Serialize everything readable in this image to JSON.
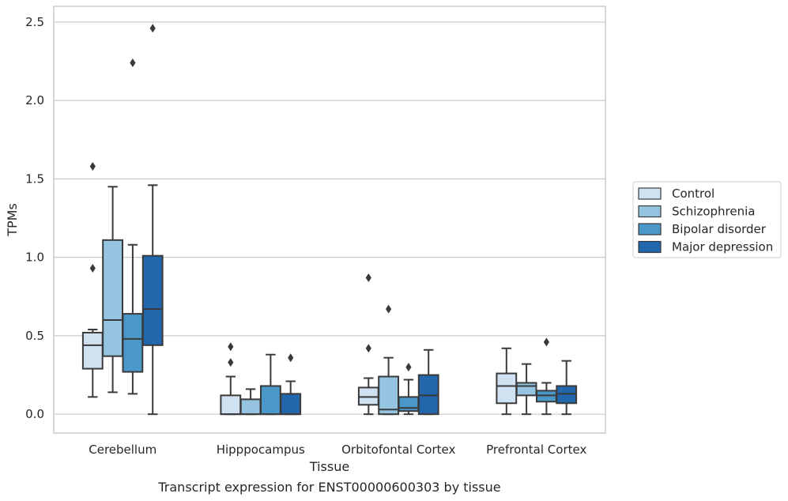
{
  "chart_data": {
    "type": "box",
    "xlabel": "Tissue",
    "ylabel": "TPMs",
    "caption": "Transcript expression for ENST00000600303 by tissue",
    "ylim": [
      -0.12,
      2.6
    ],
    "yticks": [
      0.0,
      0.5,
      1.0,
      1.5,
      2.0,
      2.5
    ],
    "ytick_labels": [
      "0.0",
      "0.5",
      "1.0",
      "1.5",
      "2.0",
      "2.5"
    ],
    "grid": "horizontal",
    "legend_position": "right",
    "categories": [
      "Cerebellum",
      "Hipppocampus",
      "Orbitofontal Cortex",
      "Prefrontal Cortex"
    ],
    "series": [
      {
        "name": "Control",
        "color": "#d0e1f2",
        "boxes": [
          {
            "whislo": 0.11,
            "q1": 0.29,
            "med": 0.44,
            "q3": 0.52,
            "whishi": 0.54,
            "fliers": [
              0.93,
              1.58
            ]
          },
          {
            "whislo": 0.0,
            "q1": 0.0,
            "med": 0.0,
            "q3": 0.12,
            "whishi": 0.24,
            "fliers": [
              0.33,
              0.43
            ]
          },
          {
            "whislo": 0.0,
            "q1": 0.06,
            "med": 0.11,
            "q3": 0.17,
            "whishi": 0.23,
            "fliers": [
              0.42,
              0.87
            ]
          },
          {
            "whislo": 0.0,
            "q1": 0.07,
            "med": 0.18,
            "q3": 0.26,
            "whishi": 0.42,
            "fliers": []
          }
        ]
      },
      {
        "name": "Schizophrenia",
        "color": "#94c4df",
        "boxes": [
          {
            "whislo": 0.14,
            "q1": 0.37,
            "med": 0.6,
            "q3": 1.11,
            "whishi": 1.45,
            "fliers": []
          },
          {
            "whislo": 0.0,
            "q1": 0.0,
            "med": 0.0,
            "q3": 0.095,
            "whishi": 0.16,
            "fliers": []
          },
          {
            "whislo": 0.0,
            "q1": 0.0,
            "med": 0.03,
            "q3": 0.24,
            "whishi": 0.36,
            "fliers": [
              0.67
            ]
          },
          {
            "whislo": 0.0,
            "q1": 0.12,
            "med": 0.18,
            "q3": 0.2,
            "whishi": 0.32,
            "fliers": []
          }
        ]
      },
      {
        "name": "Bipolar disorder",
        "color": "#4a98c9",
        "boxes": [
          {
            "whislo": 0.13,
            "q1": 0.27,
            "med": 0.48,
            "q3": 0.64,
            "whishi": 1.08,
            "fliers": [
              2.24
            ]
          },
          {
            "whislo": 0.0,
            "q1": 0.0,
            "med": 0.0,
            "q3": 0.18,
            "whishi": 0.38,
            "fliers": []
          },
          {
            "whislo": 0.0,
            "q1": 0.02,
            "med": 0.04,
            "q3": 0.11,
            "whishi": 0.22,
            "fliers": [
              0.3
            ]
          },
          {
            "whislo": 0.0,
            "q1": 0.08,
            "med": 0.12,
            "q3": 0.15,
            "whishi": 0.2,
            "fliers": [
              0.46
            ]
          }
        ]
      },
      {
        "name": "Major depression",
        "color": "#2266ac",
        "boxes": [
          {
            "whislo": 0.0,
            "q1": 0.44,
            "med": 0.67,
            "q3": 1.01,
            "whishi": 1.46,
            "fliers": [
              2.46
            ]
          },
          {
            "whislo": 0.0,
            "q1": 0.0,
            "med": 0.0,
            "q3": 0.13,
            "whishi": 0.21,
            "fliers": [
              0.36
            ]
          },
          {
            "whislo": 0.0,
            "q1": 0.0,
            "med": 0.12,
            "q3": 0.25,
            "whishi": 0.41,
            "fliers": []
          },
          {
            "whislo": 0.0,
            "q1": 0.07,
            "med": 0.13,
            "q3": 0.18,
            "whishi": 0.34,
            "fliers": []
          }
        ]
      }
    ]
  }
}
